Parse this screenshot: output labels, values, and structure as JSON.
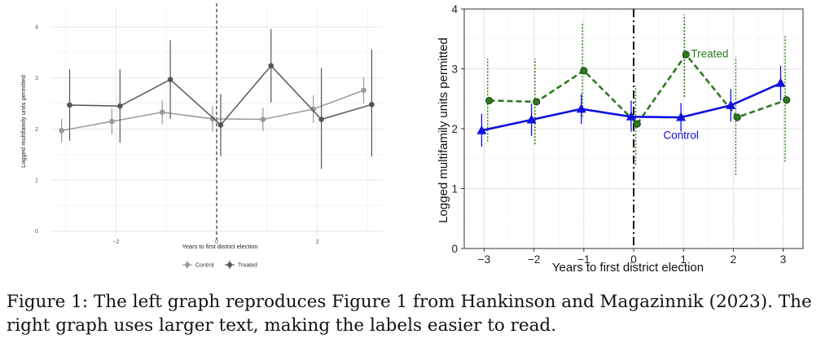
{
  "chart_data": [
    {
      "type": "line",
      "panel": "left",
      "title": "",
      "xlabel": "Years to first district election",
      "ylabel": "Logged multifamily units permitted",
      "xlim": [
        -3.3,
        3.3
      ],
      "ylim": [
        -0.1,
        4.4
      ],
      "xticks": [
        -2,
        0,
        2
      ],
      "xtick_labels": [
        "−2",
        "0",
        "2"
      ],
      "yticks": [
        0,
        1,
        2,
        3,
        4
      ],
      "ytick_labels": [
        "0",
        "1",
        "2",
        "3",
        "4"
      ],
      "grid": true,
      "vline": 0,
      "legend": {
        "position": "bottom",
        "entries": [
          "Control",
          "Treated"
        ]
      },
      "series": [
        {
          "name": "Control",
          "color": "#999999",
          "x": [
            -3,
            -2,
            -1,
            0,
            1,
            2,
            3
          ],
          "y": [
            1.97,
            2.15,
            2.33,
            2.2,
            2.19,
            2.39,
            2.76
          ],
          "lo": [
            1.74,
            1.9,
            2.1,
            1.95,
            1.96,
            2.12,
            2.5
          ],
          "hi": [
            2.2,
            2.4,
            2.56,
            2.45,
            2.42,
            2.66,
            3.02
          ]
        },
        {
          "name": "Treated",
          "color": "#555555",
          "x": [
            -3,
            -2,
            -1,
            0,
            1,
            2,
            3
          ],
          "y": [
            2.47,
            2.45,
            2.97,
            2.08,
            3.24,
            2.19,
            2.48
          ],
          "lo": [
            1.77,
            1.73,
            2.2,
            1.47,
            2.52,
            1.22,
            1.46
          ],
          "hi": [
            3.17,
            3.17,
            3.74,
            2.69,
            3.96,
            3.2,
            3.56
          ]
        }
      ]
    },
    {
      "type": "line",
      "panel": "right",
      "title": "",
      "xlabel": "Years to first district election",
      "ylabel": "Logged multifamily units permitted",
      "xlim": [
        -3.4,
        3.4
      ],
      "ylim": [
        0,
        4
      ],
      "xticks": [
        -3,
        -2,
        -1,
        0,
        1,
        2,
        3
      ],
      "xtick_labels": [
        "−3",
        "−2",
        "−1",
        "0",
        "1",
        "2",
        "3"
      ],
      "yticks": [
        0,
        1,
        2,
        3,
        4
      ],
      "ytick_labels": [
        "0",
        "1",
        "2",
        "3",
        "4"
      ],
      "grid": true,
      "vline": 0,
      "annotations": [
        {
          "text": "Treated",
          "x": 1.15,
          "y": 3.27
        },
        {
          "text": "Control",
          "x": 0.95,
          "y": 1.9
        }
      ],
      "series": [
        {
          "name": "Control",
          "color": "#1010e0",
          "x": [
            -3,
            -2,
            -1,
            0,
            1,
            2,
            3
          ],
          "y": [
            1.97,
            2.15,
            2.33,
            2.2,
            2.19,
            2.39,
            2.76
          ],
          "lo": [
            1.7,
            1.88,
            2.08,
            1.95,
            1.95,
            2.12,
            2.47
          ],
          "hi": [
            2.25,
            2.42,
            2.58,
            2.47,
            2.43,
            2.66,
            3.05
          ]
        },
        {
          "name": "Treated",
          "color": "#2e7a1f",
          "x": [
            -3,
            -2,
            -1,
            0,
            1,
            2,
            3
          ],
          "y": [
            2.47,
            2.45,
            2.97,
            2.08,
            3.24,
            2.19,
            2.48
          ],
          "lo": [
            1.79,
            1.74,
            2.2,
            1.4,
            2.53,
            1.23,
            1.45
          ],
          "hi": [
            3.17,
            3.17,
            3.75,
            2.72,
            3.9,
            3.2,
            3.55
          ]
        }
      ]
    }
  ],
  "caption": {
    "line1": "Figure 1: The left graph reproduces Figure 1 from Hankinson and Magazinnik (2023). The",
    "line2": "right graph uses larger text, making the labels easier to read."
  }
}
